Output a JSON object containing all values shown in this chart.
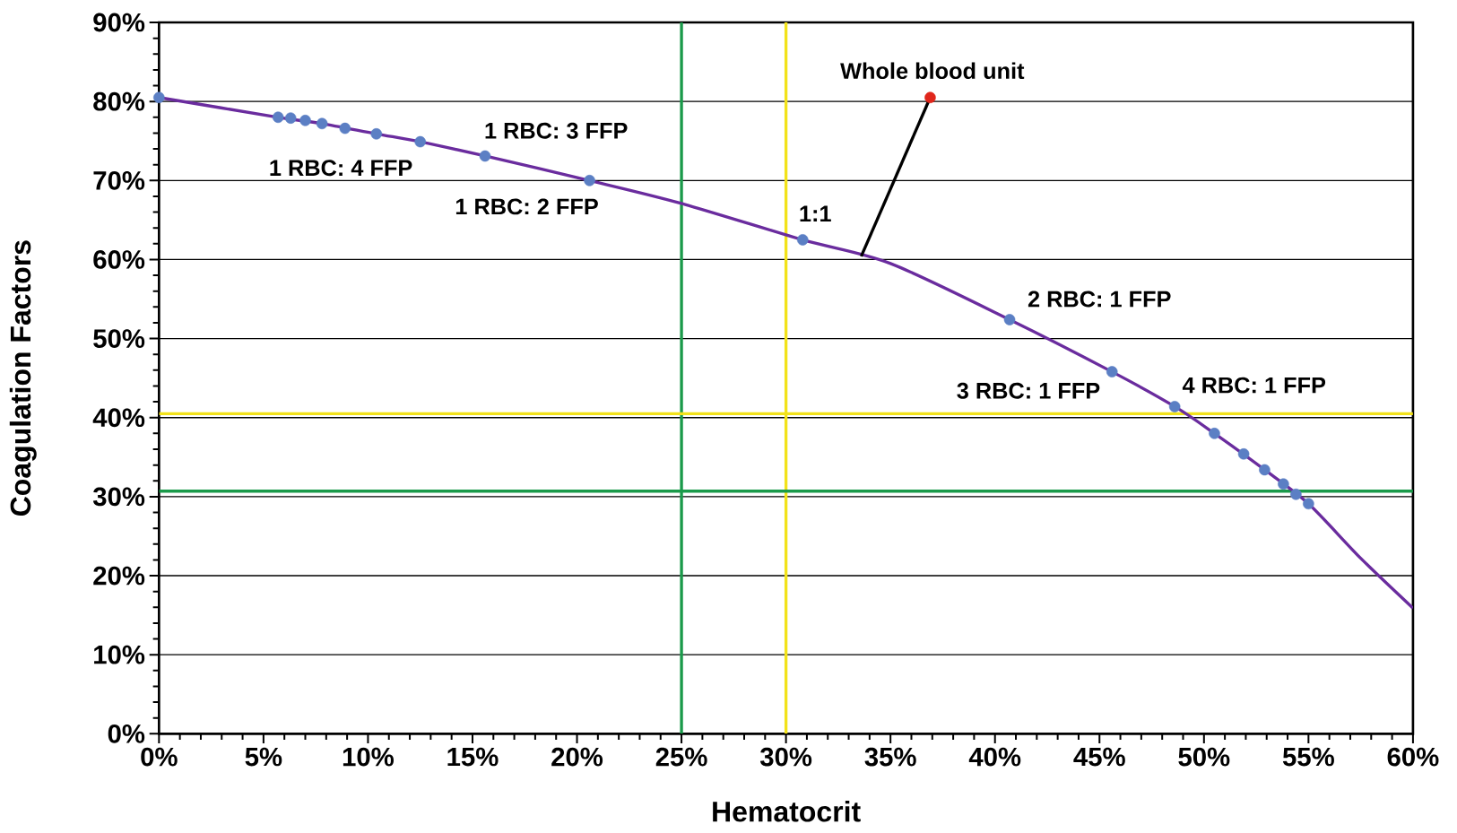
{
  "chart_data": {
    "type": "line",
    "xlabel": "Hematocrit",
    "ylabel": "Coagulation Factors",
    "xlim": [
      0,
      60
    ],
    "ylim": [
      0,
      90
    ],
    "xticks": [
      {
        "value": 0,
        "label": "0%"
      },
      {
        "value": 5,
        "label": "5%"
      },
      {
        "value": 10,
        "label": "10%"
      },
      {
        "value": 15,
        "label": "15%"
      },
      {
        "value": 20,
        "label": "20%"
      },
      {
        "value": 25,
        "label": "25%"
      },
      {
        "value": 30,
        "label": "30%"
      },
      {
        "value": 35,
        "label": "35%"
      },
      {
        "value": 40,
        "label": "40%"
      },
      {
        "value": 45,
        "label": "45%"
      },
      {
        "value": 50,
        "label": "50%"
      },
      {
        "value": 55,
        "label": "55%"
      },
      {
        "value": 60,
        "label": "60%"
      }
    ],
    "yticks": [
      {
        "value": 0,
        "label": "0%"
      },
      {
        "value": 10,
        "label": "10%"
      },
      {
        "value": 20,
        "label": "20%"
      },
      {
        "value": 30,
        "label": "30%"
      },
      {
        "value": 40,
        "label": "40%"
      },
      {
        "value": 50,
        "label": "50%"
      },
      {
        "value": 60,
        "label": "60%"
      },
      {
        "value": 70,
        "label": "70%"
      },
      {
        "value": 80,
        "label": "80%"
      },
      {
        "value": 90,
        "label": "90%"
      }
    ],
    "grid": "y",
    "series": [
      {
        "color": "#6a2c9e",
        "marker": "none",
        "x": [
          0,
          5.7,
          7.8,
          10.4,
          12.5,
          15.6,
          20.6,
          25,
          30.8,
          35,
          40.7,
          45.6,
          48.6,
          50.5,
          52.9,
          55,
          57.5,
          60
        ],
        "values": [
          80.5,
          78.0,
          77.2,
          75.9,
          74.9,
          73.1,
          70.0,
          67.1,
          62.5,
          59.5,
          52.4,
          45.8,
          41.4,
          38.0,
          33.4,
          29.1,
          22.2,
          15.9
        ]
      },
      {
        "type": "scatter",
        "color": "#5b7fc4",
        "marker": "circle",
        "x": [
          0,
          5.7,
          6.3,
          7.0,
          7.8,
          8.9,
          10.4,
          12.5,
          15.6,
          20.6,
          30.8,
          40.7,
          45.6,
          48.6,
          50.5,
          51.9,
          52.9,
          53.8,
          54.4,
          55.0
        ],
        "values": [
          80.5,
          78.0,
          77.9,
          77.6,
          77.2,
          76.6,
          75.9,
          74.9,
          73.1,
          70.0,
          62.5,
          52.4,
          45.8,
          41.4,
          38.0,
          35.4,
          33.4,
          31.6,
          30.3,
          29.1
        ]
      },
      {
        "type": "line",
        "color": "#000000",
        "marker": "none",
        "x": [
          36.9,
          33.6
        ],
        "values": [
          80.5,
          60.4
        ]
      },
      {
        "type": "scatter",
        "color": "#e0261b",
        "marker": "circle",
        "x": [
          36.9
        ],
        "values": [
          80.5
        ]
      }
    ],
    "ref_lines": [
      {
        "axis": "x",
        "value": 25,
        "color": "#1a9a4a"
      },
      {
        "axis": "x",
        "value": 30,
        "color": "#f2e21a"
      },
      {
        "axis": "y",
        "value": 40.5,
        "color": "#f2e21a"
      },
      {
        "axis": "y",
        "value": 30.7,
        "color": "#1a9a4a"
      }
    ],
    "annotations": [
      {
        "text": "Whole blood unit",
        "x": 36.9,
        "y": 80.5
      },
      {
        "text": "1 RBC: 3 FFP",
        "x": 15.6,
        "y": 73.1
      },
      {
        "text": "1 RBC: 4 FFP",
        "x": 7.8,
        "y": 77.2
      },
      {
        "text": "1 RBC: 2 FFP",
        "x": 20.6,
        "y": 70.0
      },
      {
        "text": "1:1",
        "x": 30.8,
        "y": 62.5
      },
      {
        "text": "2 RBC: 1 FFP",
        "x": 40.7,
        "y": 52.4
      },
      {
        "text": "3 RBC: 1 FFP",
        "x": 45.6,
        "y": 45.8
      },
      {
        "text": "4 RBC: 1 FFP",
        "x": 48.6,
        "y": 41.4
      }
    ]
  }
}
